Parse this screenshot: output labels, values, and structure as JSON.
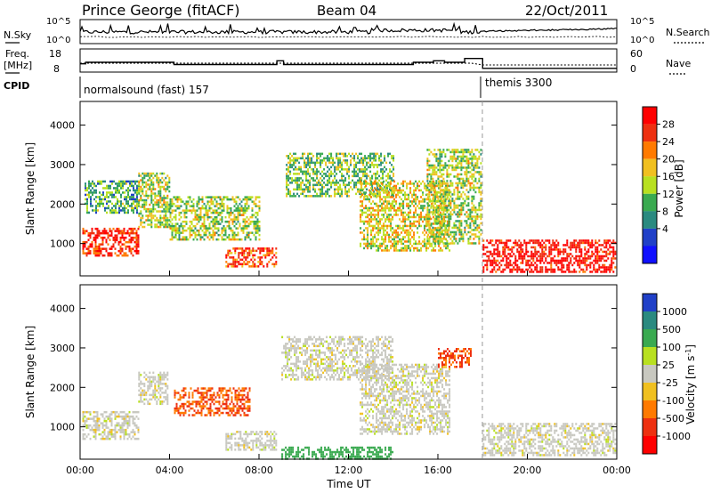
{
  "header": {
    "station": "Prince George (fitACF)",
    "beam": "Beam 04",
    "date": "22/Oct/2011"
  },
  "side_labels": {
    "nsky": "N.Sky",
    "nsearch": "N.Search",
    "freq": "Freq.",
    "freq_unit": "[MHz]",
    "nave": "Nave",
    "cpid": "CPID"
  },
  "cpid": [
    {
      "label": "normalsound (fast) 157",
      "start_hour": 0,
      "end_hour": 18.0
    },
    {
      "label": "themis 3300",
      "start_hour": 18.0,
      "end_hour": 24
    }
  ],
  "chart_data": [
    {
      "type": "line",
      "name": "noise",
      "x_range": [
        0,
        24
      ],
      "left_ticks": [
        "10^5",
        "10^0"
      ],
      "right_ticks": [
        "10^5",
        "10^0"
      ]
    },
    {
      "type": "line",
      "name": "frequency-nave",
      "left_ticks": [
        "18",
        "8"
      ],
      "right_ticks": [
        "60",
        "0"
      ],
      "freq_steps": [
        {
          "x0": 0.0,
          "x1": 0.25,
          "v": 13.5
        },
        {
          "x0": 0.25,
          "x1": 2.6,
          "v": 14.5
        },
        {
          "x0": 2.6,
          "x1": 4.2,
          "v": 14.5
        },
        {
          "x0": 4.2,
          "x1": 8.8,
          "v": 13.0
        },
        {
          "x0": 8.8,
          "x1": 9.1,
          "v": 15.5
        },
        {
          "x0": 9.1,
          "x1": 14.9,
          "v": 13.0
        },
        {
          "x0": 14.9,
          "x1": 15.8,
          "v": 14.5
        },
        {
          "x0": 15.8,
          "x1": 16.3,
          "v": 15.5
        },
        {
          "x0": 16.3,
          "x1": 17.2,
          "v": 14.5
        },
        {
          "x0": 17.2,
          "x1": 18.0,
          "v": 17.0
        },
        {
          "x0": 18.0,
          "x1": 24.0,
          "v": 10.5
        }
      ]
    },
    {
      "type": "heatmap",
      "name": "power",
      "ylabel": "Slant Range [km]",
      "ylim": [
        180,
        4600
      ],
      "xlim": [
        0,
        24
      ],
      "yticks": [
        1000,
        2000,
        3000,
        4000
      ],
      "colorbar_label": "Power [dB]",
      "colorbar_ticks": [
        "28",
        "24",
        "20",
        "16",
        "12",
        "8",
        "4"
      ],
      "colorbar_colors": [
        "#ff0000",
        "#ee3010",
        "#ff7a00",
        "#f0c020",
        "#b8e020",
        "#3aaa50",
        "#2a8a80",
        "#2040c8",
        "#1010ff"
      ],
      "regions": [
        {
          "x0": 0.1,
          "x1": 2.6,
          "y0": 700,
          "y1": 1400,
          "v": 26
        },
        {
          "x0": 0.2,
          "x1": 2.6,
          "y0": 1800,
          "y1": 2600,
          "v": 10
        },
        {
          "x0": 2.6,
          "x1": 4.0,
          "y0": 1400,
          "y1": 2800,
          "v": 14
        },
        {
          "x0": 4.0,
          "x1": 8.0,
          "y0": 1100,
          "y1": 2200,
          "v": 14
        },
        {
          "x0": 6.5,
          "x1": 8.8,
          "y0": 400,
          "y1": 900,
          "v": 24
        },
        {
          "x0": 9.2,
          "x1": 14.0,
          "y0": 2200,
          "y1": 3300,
          "v": 12
        },
        {
          "x0": 12.5,
          "x1": 16.5,
          "y0": 800,
          "y1": 2600,
          "v": 16
        },
        {
          "x0": 15.5,
          "x1": 17.9,
          "y0": 1000,
          "y1": 3400,
          "v": 14
        },
        {
          "x0": 18.0,
          "x1": 23.9,
          "y0": 300,
          "y1": 1100,
          "v": 28
        }
      ]
    },
    {
      "type": "heatmap",
      "name": "velocity",
      "ylabel": "Slant Range [km]",
      "ylim": [
        180,
        4600
      ],
      "xlim": [
        0,
        24
      ],
      "yticks": [
        1000,
        2000,
        3000,
        4000
      ],
      "xlabel": "Time UT",
      "xticks": [
        "00:00",
        "04:00",
        "08:00",
        "12:00",
        "16:00",
        "20:00",
        "00:00"
      ],
      "colorbar_label": "Velocity [m s",
      "colorbar_label_sup": "-1",
      "colorbar_label_end": "]",
      "colorbar_ticks": [
        "1000",
        "500",
        "100",
        "25",
        "-25",
        "-100",
        "-500",
        "-1000"
      ],
      "colorbar_colors": [
        "#2040c8",
        "#2a8a80",
        "#3aaa50",
        "#b8e020",
        "#c8c8c0",
        "#f0c020",
        "#ff7a00",
        "#ee3010",
        "#ff0000"
      ],
      "regions": [
        {
          "x0": 0.1,
          "x1": 2.6,
          "y0": 700,
          "y1": 1400,
          "v": 0
        },
        {
          "x0": 2.6,
          "x1": 3.9,
          "y0": 1600,
          "y1": 2400,
          "v": 0
        },
        {
          "x0": 4.2,
          "x1": 7.6,
          "y0": 1300,
          "y1": 2000,
          "v": -300
        },
        {
          "x0": 6.5,
          "x1": 8.8,
          "y0": 400,
          "y1": 900,
          "v": 0
        },
        {
          "x0": 9.0,
          "x1": 14.0,
          "y0": 2200,
          "y1": 3300,
          "v": 0
        },
        {
          "x0": 12.5,
          "x1": 16.5,
          "y0": 800,
          "y1": 2600,
          "v": 0
        },
        {
          "x0": 9.0,
          "x1": 14.0,
          "y0": 200,
          "y1": 500,
          "v": 150
        },
        {
          "x0": 16.0,
          "x1": 17.5,
          "y0": 2500,
          "y1": 3000,
          "v": -300
        },
        {
          "x0": 18.0,
          "x1": 23.9,
          "y0": 300,
          "y1": 1100,
          "v": 0
        }
      ]
    }
  ]
}
